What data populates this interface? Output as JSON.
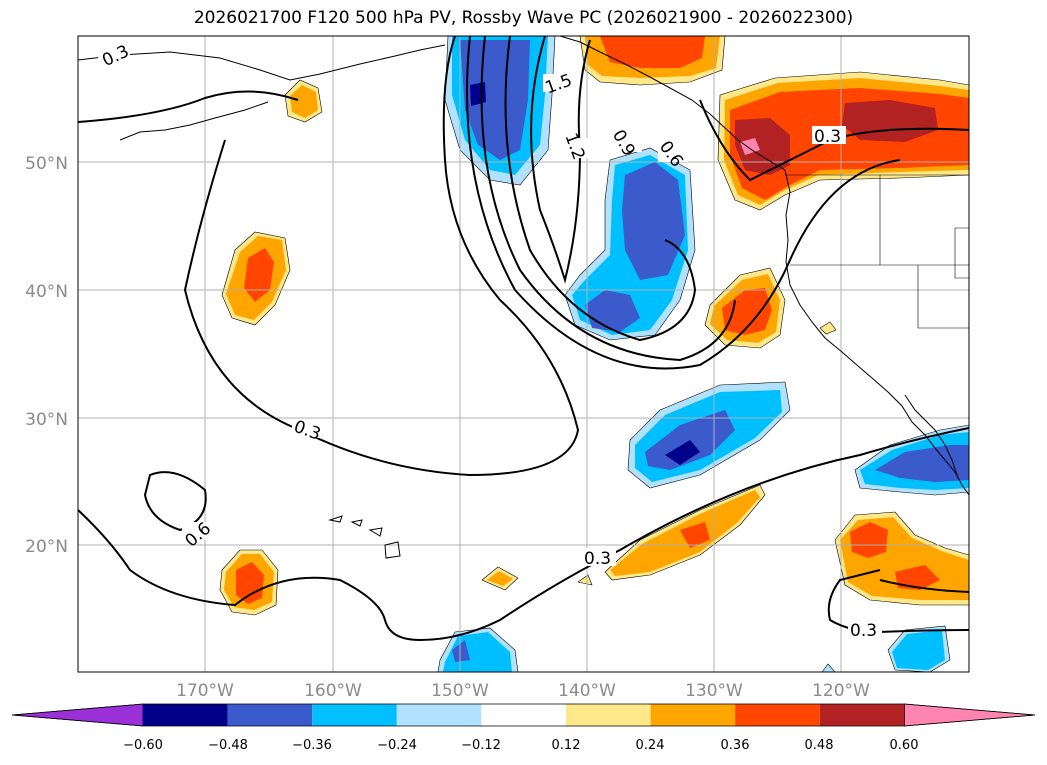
{
  "title": "2026021700 F120 500 hPa PV, Rossby Wave PC (2026021900 - 2026022300)",
  "lat_labels": [
    "50°N",
    "40°N",
    "30°N",
    "20°N"
  ],
  "lon_labels": [
    "170°W",
    "160°W",
    "150°W",
    "140°W",
    "130°W",
    "120°W"
  ],
  "colorbar": {
    "ticks": [
      "−0.60",
      "−0.48",
      "−0.36",
      "−0.24",
      "−0.12",
      "0.12",
      "0.24",
      "0.36",
      "0.48",
      "0.60"
    ],
    "colors": [
      "#9b30d8",
      "#00008b",
      "#3b5bcc",
      "#00bfff",
      "#b0e2ff",
      "#ffffff",
      "#ffe88a",
      "#ffa500",
      "#ff4500",
      "#b22222",
      "#ff85b0"
    ]
  },
  "contour_labels": [
    "0.3",
    "1.5",
    "1.2",
    "0.9",
    "0.6",
    "0.3",
    "0.3",
    "0.6",
    "0.3",
    "0.3"
  ]
}
